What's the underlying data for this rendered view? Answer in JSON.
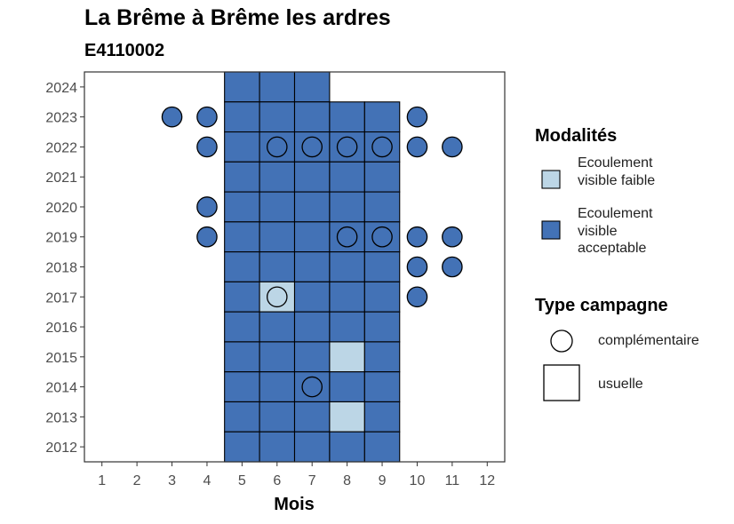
{
  "chart_data": {
    "type": "heatmap",
    "title": "La Brême à Brême les ardres",
    "subtitle": "E4110002",
    "xlabel": "Mois",
    "ylabel": "",
    "x_ticks": [
      1,
      2,
      3,
      4,
      5,
      6,
      7,
      8,
      9,
      10,
      11,
      12
    ],
    "y_ticks": [
      2012,
      2013,
      2014,
      2015,
      2016,
      2017,
      2018,
      2019,
      2020,
      2021,
      2022,
      2023,
      2024
    ],
    "xlim": [
      0.5,
      12.5
    ],
    "ylim": [
      2011.5,
      2024.5
    ],
    "grid": false,
    "legend_placement": "right",
    "legends": {
      "modalites": {
        "title": "Modalités",
        "entries": [
          {
            "label": "Ecoulement visible faible",
            "color": "#bcd6e6"
          },
          {
            "label": "Ecoulement visible acceptable",
            "color": "#4372b6"
          }
        ]
      },
      "type_campagne": {
        "title": "Type campagne",
        "entries": [
          {
            "label": "complémentaire",
            "shape": "circle"
          },
          {
            "label": "usuelle",
            "shape": "square"
          }
        ]
      }
    },
    "colors": {
      "faible": "#bcd6e6",
      "acceptable": "#4372b6"
    },
    "observations": [
      {
        "year": 2024,
        "month": 5,
        "type": "usuelle",
        "modalite": "acceptable"
      },
      {
        "year": 2024,
        "month": 6,
        "type": "usuelle",
        "modalite": "acceptable"
      },
      {
        "year": 2024,
        "month": 7,
        "type": "usuelle",
        "modalite": "acceptable"
      },
      {
        "year": 2023,
        "month": 3,
        "type": "complémentaire",
        "modalite": "acceptable"
      },
      {
        "year": 2023,
        "month": 4,
        "type": "complémentaire",
        "modalite": "acceptable"
      },
      {
        "year": 2023,
        "month": 5,
        "type": "usuelle",
        "modalite": "acceptable"
      },
      {
        "year": 2023,
        "month": 6,
        "type": "usuelle",
        "modalite": "acceptable"
      },
      {
        "year": 2023,
        "month": 7,
        "type": "usuelle",
        "modalite": "acceptable"
      },
      {
        "year": 2023,
        "month": 8,
        "type": "usuelle",
        "modalite": "acceptable"
      },
      {
        "year": 2023,
        "month": 9,
        "type": "usuelle",
        "modalite": "acceptable"
      },
      {
        "year": 2023,
        "month": 10,
        "type": "complémentaire",
        "modalite": "acceptable"
      },
      {
        "year": 2022,
        "month": 4,
        "type": "complémentaire",
        "modalite": "acceptable"
      },
      {
        "year": 2022,
        "month": 5,
        "type": "usuelle",
        "modalite": "acceptable"
      },
      {
        "year": 2022,
        "month": 6,
        "type": "usuelle",
        "modalite": "acceptable"
      },
      {
        "year": 2022,
        "month": 7,
        "type": "usuelle",
        "modalite": "acceptable"
      },
      {
        "year": 2022,
        "month": 8,
        "type": "usuelle",
        "modalite": "acceptable"
      },
      {
        "year": 2022,
        "month": 9,
        "type": "usuelle",
        "modalite": "acceptable"
      },
      {
        "year": 2022,
        "month": 6,
        "type": "complémentaire",
        "modalite": "acceptable"
      },
      {
        "year": 2022,
        "month": 7,
        "type": "complémentaire",
        "modalite": "acceptable"
      },
      {
        "year": 2022,
        "month": 8,
        "type": "complémentaire",
        "modalite": "acceptable"
      },
      {
        "year": 2022,
        "month": 9,
        "type": "complémentaire",
        "modalite": "acceptable"
      },
      {
        "year": 2022,
        "month": 10,
        "type": "complémentaire",
        "modalite": "acceptable"
      },
      {
        "year": 2022,
        "month": 11,
        "type": "complémentaire",
        "modalite": "acceptable"
      },
      {
        "year": 2021,
        "month": 5,
        "type": "usuelle",
        "modalite": "acceptable"
      },
      {
        "year": 2021,
        "month": 6,
        "type": "usuelle",
        "modalite": "acceptable"
      },
      {
        "year": 2021,
        "month": 7,
        "type": "usuelle",
        "modalite": "acceptable"
      },
      {
        "year": 2021,
        "month": 8,
        "type": "usuelle",
        "modalite": "acceptable"
      },
      {
        "year": 2021,
        "month": 9,
        "type": "usuelle",
        "modalite": "acceptable"
      },
      {
        "year": 2020,
        "month": 4,
        "type": "complémentaire",
        "modalite": "acceptable"
      },
      {
        "year": 2020,
        "month": 5,
        "type": "usuelle",
        "modalite": "acceptable"
      },
      {
        "year": 2020,
        "month": 6,
        "type": "usuelle",
        "modalite": "acceptable"
      },
      {
        "year": 2020,
        "month": 7,
        "type": "usuelle",
        "modalite": "acceptable"
      },
      {
        "year": 2020,
        "month": 8,
        "type": "usuelle",
        "modalite": "acceptable"
      },
      {
        "year": 2020,
        "month": 9,
        "type": "usuelle",
        "modalite": "acceptable"
      },
      {
        "year": 2019,
        "month": 4,
        "type": "complémentaire",
        "modalite": "acceptable"
      },
      {
        "year": 2019,
        "month": 5,
        "type": "usuelle",
        "modalite": "acceptable"
      },
      {
        "year": 2019,
        "month": 6,
        "type": "usuelle",
        "modalite": "acceptable"
      },
      {
        "year": 2019,
        "month": 7,
        "type": "usuelle",
        "modalite": "acceptable"
      },
      {
        "year": 2019,
        "month": 8,
        "type": "usuelle",
        "modalite": "acceptable"
      },
      {
        "year": 2019,
        "month": 9,
        "type": "usuelle",
        "modalite": "acceptable"
      },
      {
        "year": 2019,
        "month": 8,
        "type": "complémentaire",
        "modalite": "acceptable"
      },
      {
        "year": 2019,
        "month": 9,
        "type": "complémentaire",
        "modalite": "acceptable"
      },
      {
        "year": 2019,
        "month": 10,
        "type": "complémentaire",
        "modalite": "acceptable"
      },
      {
        "year": 2019,
        "month": 11,
        "type": "complémentaire",
        "modalite": "acceptable"
      },
      {
        "year": 2018,
        "month": 5,
        "type": "usuelle",
        "modalite": "acceptable"
      },
      {
        "year": 2018,
        "month": 6,
        "type": "usuelle",
        "modalite": "acceptable"
      },
      {
        "year": 2018,
        "month": 7,
        "type": "usuelle",
        "modalite": "acceptable"
      },
      {
        "year": 2018,
        "month": 8,
        "type": "usuelle",
        "modalite": "acceptable"
      },
      {
        "year": 2018,
        "month": 9,
        "type": "usuelle",
        "modalite": "acceptable"
      },
      {
        "year": 2018,
        "month": 10,
        "type": "complémentaire",
        "modalite": "acceptable"
      },
      {
        "year": 2018,
        "month": 11,
        "type": "complémentaire",
        "modalite": "acceptable"
      },
      {
        "year": 2017,
        "month": 5,
        "type": "usuelle",
        "modalite": "acceptable"
      },
      {
        "year": 2017,
        "month": 6,
        "type": "usuelle",
        "modalite": "faible"
      },
      {
        "year": 2017,
        "month": 7,
        "type": "usuelle",
        "modalite": "acceptable"
      },
      {
        "year": 2017,
        "month": 8,
        "type": "usuelle",
        "modalite": "acceptable"
      },
      {
        "year": 2017,
        "month": 9,
        "type": "usuelle",
        "modalite": "acceptable"
      },
      {
        "year": 2017,
        "month": 6,
        "type": "complémentaire",
        "modalite": "faible"
      },
      {
        "year": 2017,
        "month": 10,
        "type": "complémentaire",
        "modalite": "acceptable"
      },
      {
        "year": 2016,
        "month": 5,
        "type": "usuelle",
        "modalite": "acceptable"
      },
      {
        "year": 2016,
        "month": 6,
        "type": "usuelle",
        "modalite": "acceptable"
      },
      {
        "year": 2016,
        "month": 7,
        "type": "usuelle",
        "modalite": "acceptable"
      },
      {
        "year": 2016,
        "month": 8,
        "type": "usuelle",
        "modalite": "acceptable"
      },
      {
        "year": 2016,
        "month": 9,
        "type": "usuelle",
        "modalite": "acceptable"
      },
      {
        "year": 2015,
        "month": 5,
        "type": "usuelle",
        "modalite": "acceptable"
      },
      {
        "year": 2015,
        "month": 6,
        "type": "usuelle",
        "modalite": "acceptable"
      },
      {
        "year": 2015,
        "month": 7,
        "type": "usuelle",
        "modalite": "acceptable"
      },
      {
        "year": 2015,
        "month": 8,
        "type": "usuelle",
        "modalite": "faible"
      },
      {
        "year": 2015,
        "month": 9,
        "type": "usuelle",
        "modalite": "acceptable"
      },
      {
        "year": 2014,
        "month": 5,
        "type": "usuelle",
        "modalite": "acceptable"
      },
      {
        "year": 2014,
        "month": 6,
        "type": "usuelle",
        "modalite": "acceptable"
      },
      {
        "year": 2014,
        "month": 7,
        "type": "usuelle",
        "modalite": "acceptable"
      },
      {
        "year": 2014,
        "month": 8,
        "type": "usuelle",
        "modalite": "acceptable"
      },
      {
        "year": 2014,
        "month": 9,
        "type": "usuelle",
        "modalite": "acceptable"
      },
      {
        "year": 2014,
        "month": 7,
        "type": "complémentaire",
        "modalite": "acceptable"
      },
      {
        "year": 2013,
        "month": 5,
        "type": "usuelle",
        "modalite": "acceptable"
      },
      {
        "year": 2013,
        "month": 6,
        "type": "usuelle",
        "modalite": "acceptable"
      },
      {
        "year": 2013,
        "month": 7,
        "type": "usuelle",
        "modalite": "acceptable"
      },
      {
        "year": 2013,
        "month": 8,
        "type": "usuelle",
        "modalite": "faible"
      },
      {
        "year": 2013,
        "month": 9,
        "type": "usuelle",
        "modalite": "acceptable"
      },
      {
        "year": 2012,
        "month": 5,
        "type": "usuelle",
        "modalite": "acceptable"
      },
      {
        "year": 2012,
        "month": 6,
        "type": "usuelle",
        "modalite": "acceptable"
      },
      {
        "year": 2012,
        "month": 7,
        "type": "usuelle",
        "modalite": "acceptable"
      },
      {
        "year": 2012,
        "month": 8,
        "type": "usuelle",
        "modalite": "acceptable"
      },
      {
        "year": 2012,
        "month": 9,
        "type": "usuelle",
        "modalite": "acceptable"
      }
    ]
  }
}
